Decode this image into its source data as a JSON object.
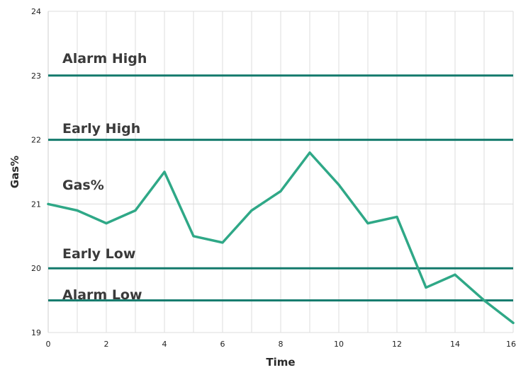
{
  "chart_data": {
    "type": "line",
    "xlabel": "Time",
    "ylabel": "Gas%",
    "xlim": [
      0,
      16
    ],
    "ylim": [
      19,
      24
    ],
    "xticks": [
      "0",
      "2",
      "4",
      "6",
      "8",
      "10",
      "12",
      "14",
      "16"
    ],
    "yticks": [
      "19",
      "20",
      "21",
      "22",
      "23",
      "24"
    ],
    "grid": true,
    "series": [
      {
        "name": "Gas%",
        "color": "#2fa887",
        "x": [
          0,
          1,
          2,
          3,
          4,
          5,
          6,
          7,
          8,
          9,
          10,
          11,
          12,
          13,
          14,
          15,
          16
        ],
        "values": [
          21.0,
          20.9,
          20.7,
          20.9,
          21.5,
          20.5,
          20.4,
          20.9,
          21.2,
          21.8,
          21.3,
          20.7,
          20.8,
          19.7,
          19.9,
          19.5,
          19.15
        ]
      }
    ],
    "thresholds": [
      {
        "name": "Alarm High",
        "value": 23.0,
        "color": "#137a6c"
      },
      {
        "name": "Early High",
        "value": 22.0,
        "color": "#137a6c"
      },
      {
        "name": "Early Low",
        "value": 20.0,
        "color": "#137a6c"
      },
      {
        "name": "Alarm Low",
        "value": 19.5,
        "color": "#137a6c"
      }
    ]
  }
}
